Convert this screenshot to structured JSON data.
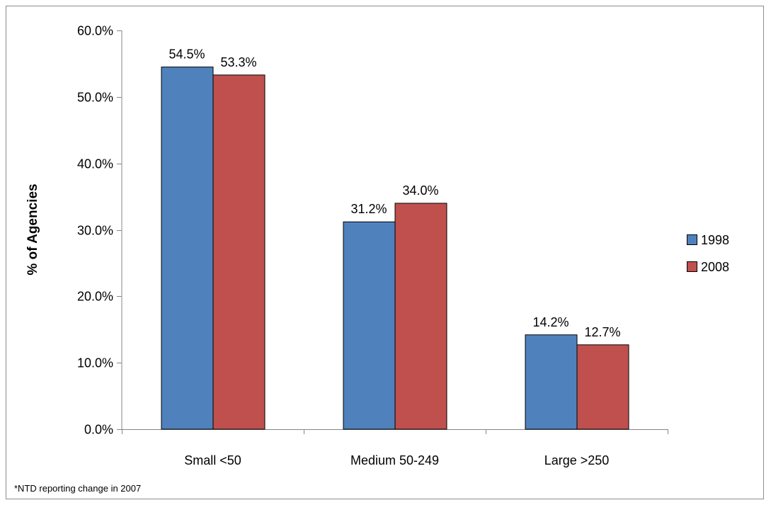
{
  "chart_data": {
    "type": "bar",
    "categories": [
      "Small <50",
      "Medium 50-249",
      "Large >250"
    ],
    "series": [
      {
        "name": "1998",
        "values": [
          54.5,
          31.2,
          14.2
        ],
        "color": "#4f81bd"
      },
      {
        "name": "2008",
        "values": [
          53.3,
          34.0,
          12.7
        ],
        "color": "#c0504d"
      }
    ],
    "data_labels": [
      [
        "54.5%",
        "31.2%",
        "14.2%"
      ],
      [
        "53.3%",
        "34.0%",
        "12.7%"
      ]
    ],
    "yticks": [
      0,
      10,
      20,
      30,
      40,
      50,
      60
    ],
    "ytick_labels": [
      "0.0%",
      "10.0%",
      "20.0%",
      "30.0%",
      "40.0%",
      "50.0%",
      "60.0%"
    ],
    "ylim": [
      0,
      60
    ],
    "xlabel": "",
    "ylabel": "% of Agencies",
    "title": "",
    "legend_position": "right",
    "grid": false,
    "footnote": "*NTD reporting change in 2007"
  }
}
